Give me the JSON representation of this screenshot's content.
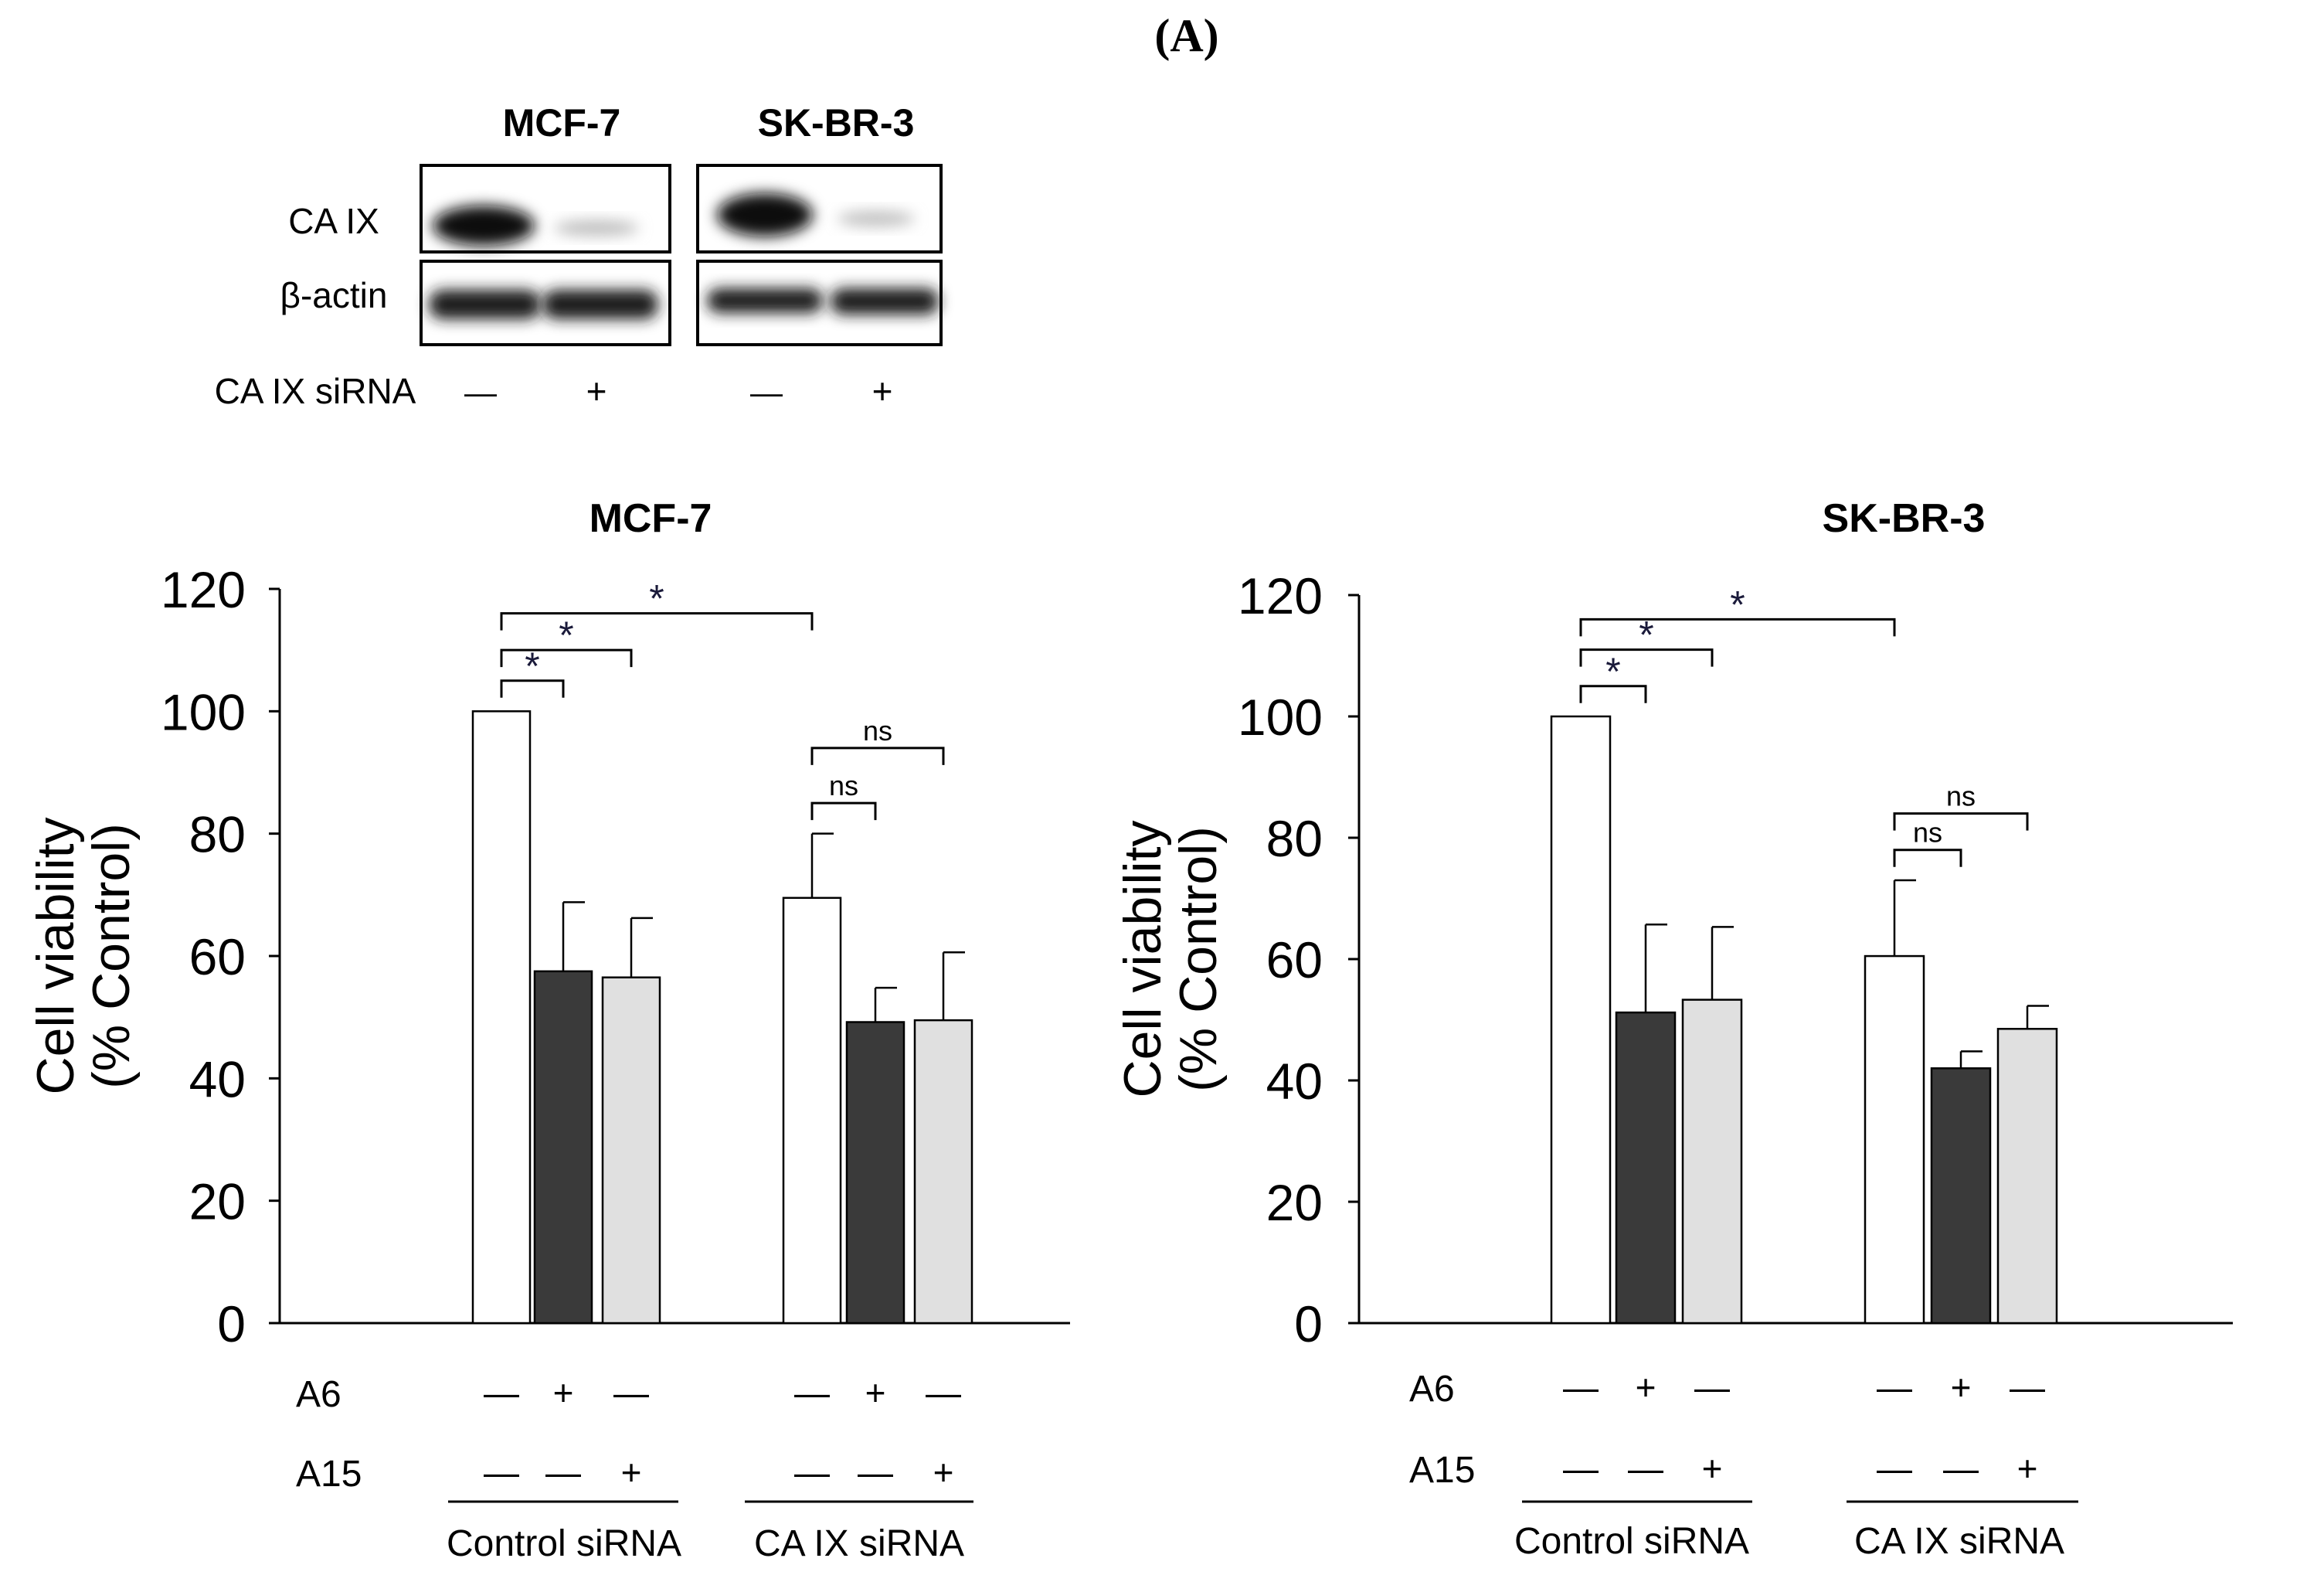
{
  "figure": {
    "panel_label": "(A)"
  },
  "western_blot": {
    "cell_lines": [
      "MCF-7",
      "SK-BR-3"
    ],
    "row_labels": [
      "CA IX",
      "β-actin"
    ],
    "treatment_label": "CA IX siRNA",
    "lane_signs": [
      "—",
      "+",
      "—",
      "+"
    ],
    "band_intensity": {
      "CA IX": [
        1.0,
        0.12,
        1.0,
        0.12
      ],
      "β-actin": [
        1.0,
        1.0,
        1.0,
        1.0
      ]
    }
  },
  "colors": {
    "white_bar": "#ffffff",
    "dark_bar": "#3a3a3a",
    "light_bar": "#e0e0e0",
    "axis": "#000000",
    "star": "#1a1a3a"
  },
  "chart_data": [
    {
      "type": "bar",
      "title": "MCF-7",
      "ylabel_line1": "Cell viability",
      "ylabel_line2": "(% Control)",
      "ylim": [
        0,
        120
      ],
      "yticks": [
        "0",
        "20",
        "40",
        "60",
        "80",
        "100",
        "120"
      ],
      "row_labels": [
        "A6",
        "A15"
      ],
      "groups": [
        {
          "label": "Control siRNA",
          "bars": [
            {
              "value": 100,
              "error": 0,
              "style": "white",
              "a6": "—",
              "a15": "—"
            },
            {
              "value": 57.5,
              "error": 11.3,
              "style": "dark",
              "a6": "+",
              "a15": "—"
            },
            {
              "value": 56.5,
              "error": 9.7,
              "style": "light",
              "a6": "—",
              "a15": "+"
            }
          ]
        },
        {
          "label": "CA IX siRNA",
          "bars": [
            {
              "value": 69.5,
              "error": 10.5,
              "style": "white",
              "a6": "—",
              "a15": "—"
            },
            {
              "value": 49.2,
              "error": 5.6,
              "style": "dark",
              "a6": "+",
              "a15": "—"
            },
            {
              "value": 49.5,
              "error": 11.1,
              "style": "light",
              "a6": "—",
              "a15": "+"
            }
          ]
        }
      ],
      "significance": [
        {
          "from": [
            0,
            0
          ],
          "to": [
            0,
            1
          ],
          "label": "*",
          "level": 105
        },
        {
          "from": [
            0,
            0
          ],
          "to": [
            0,
            2
          ],
          "label": "*",
          "level": 110
        },
        {
          "from": [
            0,
            0
          ],
          "to": [
            1,
            0
          ],
          "label": "*",
          "level": 116
        },
        {
          "from": [
            1,
            0
          ],
          "to": [
            1,
            1
          ],
          "label": "ns",
          "level": 85
        },
        {
          "from": [
            1,
            0
          ],
          "to": [
            1,
            2
          ],
          "label": "ns",
          "level": 94
        }
      ]
    },
    {
      "type": "bar",
      "title": "SK-BR-3",
      "ylabel_line1": "Cell viability",
      "ylabel_line2": "(% Control)",
      "ylim": [
        0,
        120
      ],
      "yticks": [
        "0",
        "20",
        "40",
        "60",
        "80",
        "100",
        "120"
      ],
      "row_labels": [
        "A6",
        "A15"
      ],
      "groups": [
        {
          "label": "Control siRNA",
          "bars": [
            {
              "value": 100,
              "error": 0,
              "style": "white",
              "a6": "—",
              "a15": "—"
            },
            {
              "value": 51.2,
              "error": 14.5,
              "style": "dark",
              "a6": "+",
              "a15": "—"
            },
            {
              "value": 53.3,
              "error": 12.0,
              "style": "light",
              "a6": "—",
              "a15": "+"
            }
          ]
        },
        {
          "label": "CA IX siRNA",
          "bars": [
            {
              "value": 60.5,
              "error": 12.5,
              "style": "white",
              "a6": "—",
              "a15": "—"
            },
            {
              "value": 42.0,
              "error": 2.8,
              "style": "dark",
              "a6": "+",
              "a15": "—"
            },
            {
              "value": 48.5,
              "error": 3.8,
              "style": "light",
              "a6": "—",
              "a15": "+"
            }
          ]
        }
      ],
      "significance": [
        {
          "from": [
            0,
            0
          ],
          "to": [
            0,
            1
          ],
          "label": "*",
          "level": 105
        },
        {
          "from": [
            0,
            0
          ],
          "to": [
            0,
            2
          ],
          "label": "*",
          "level": 111
        },
        {
          "from": [
            0,
            0
          ],
          "to": [
            1,
            0
          ],
          "label": "*",
          "level": 116
        },
        {
          "from": [
            1,
            0
          ],
          "to": [
            1,
            1
          ],
          "label": "ns",
          "level": 78
        },
        {
          "from": [
            1,
            0
          ],
          "to": [
            1,
            2
          ],
          "label": "ns",
          "level": 84
        }
      ]
    }
  ]
}
